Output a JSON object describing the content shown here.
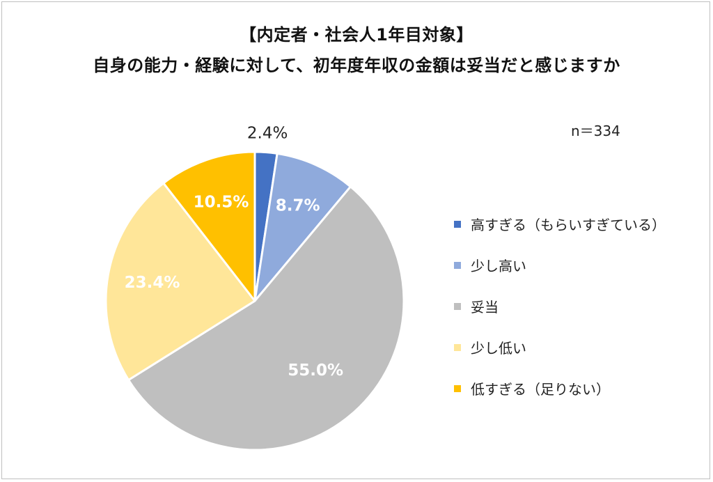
{
  "title_line1": "【内定者・社会人1年目対象】",
  "title_line2": "自身の能力・経験に対して、初年度年収の金額は妥当だと感じますか",
  "sample_size": "n＝334",
  "chart_data": {
    "type": "pie",
    "title": "【内定者・社会人1年目対象】 自身の能力・経験に対して、初年度年収の金額は妥当だと感じますか",
    "start_angle_deg": 0,
    "direction": "clockwise",
    "legend_position": "right",
    "slices": [
      {
        "label": "高すぎる（もらいすぎている）",
        "value": 2.4,
        "display": "2.4%",
        "color": "#4472c4",
        "label_inside": false,
        "label_color": "#222222"
      },
      {
        "label": "少し高い",
        "value": 8.7,
        "display": "8.7%",
        "color": "#8faadc",
        "label_inside": true,
        "label_color": "#ffffff"
      },
      {
        "label": "妥当",
        "value": 55.0,
        "display": "55.0%",
        "color": "#bfbfbf",
        "label_inside": true,
        "label_color": "#ffffff"
      },
      {
        "label": "少し低い",
        "value": 23.4,
        "display": "23.4%",
        "color": "#ffe699",
        "label_inside": true,
        "label_color": "#ffffff"
      },
      {
        "label": "低すぎる（足りない）",
        "value": 10.5,
        "display": "10.5%",
        "color": "#ffc000",
        "label_inside": true,
        "label_color": "#ffffff"
      }
    ]
  }
}
